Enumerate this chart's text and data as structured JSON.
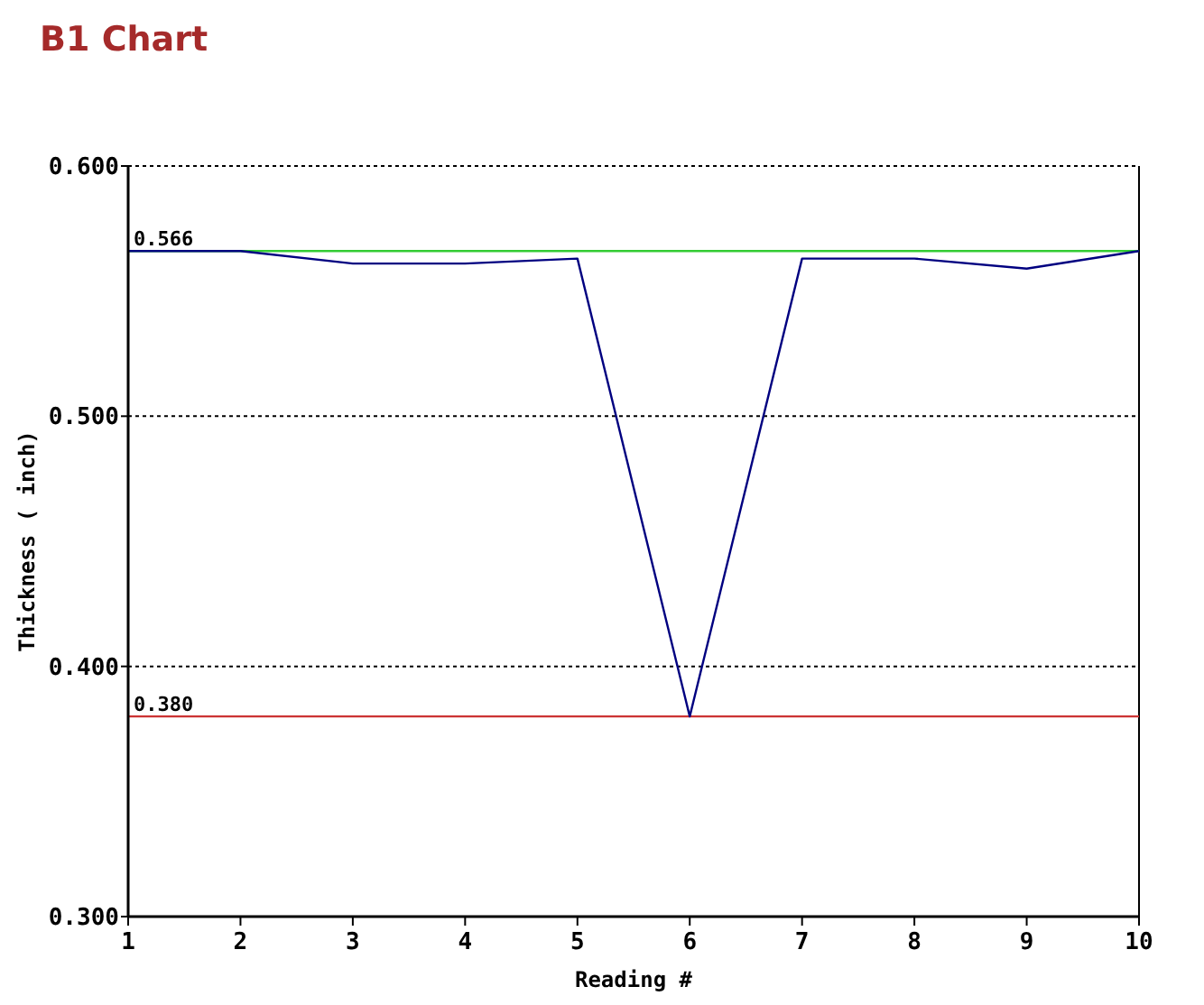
{
  "chart_data": {
    "type": "line",
    "title": "B1 Chart",
    "xlabel": "Reading #",
    "ylabel": "Thickness ( inch)",
    "x": [
      1,
      2,
      3,
      4,
      5,
      6,
      7,
      8,
      9,
      10
    ],
    "series": [
      {
        "color": "#000080",
        "values": [
          0.566,
          0.566,
          0.561,
          0.561,
          0.563,
          0.38,
          0.563,
          0.563,
          0.559,
          0.566
        ]
      }
    ],
    "xlim": [
      1,
      10
    ],
    "xticks": [
      1,
      2,
      3,
      4,
      5,
      6,
      7,
      8,
      9,
      10
    ],
    "ylim": [
      0.3,
      0.6
    ],
    "yticks": [
      {
        "value": 0.3,
        "label": "0.300"
      },
      {
        "value": 0.4,
        "label": "0.400"
      },
      {
        "value": 0.5,
        "label": "0.500"
      },
      {
        "value": 0.6,
        "label": "0.600"
      }
    ],
    "grid": "y",
    "marker": "none",
    "line_style": "solid",
    "ref_lines": [
      {
        "axis": "y",
        "value": 0.566,
        "label": "0.566",
        "color": "#33cc33"
      },
      {
        "axis": "y",
        "value": 0.38,
        "label": "0.380",
        "color": "#cc3333"
      }
    ]
  }
}
